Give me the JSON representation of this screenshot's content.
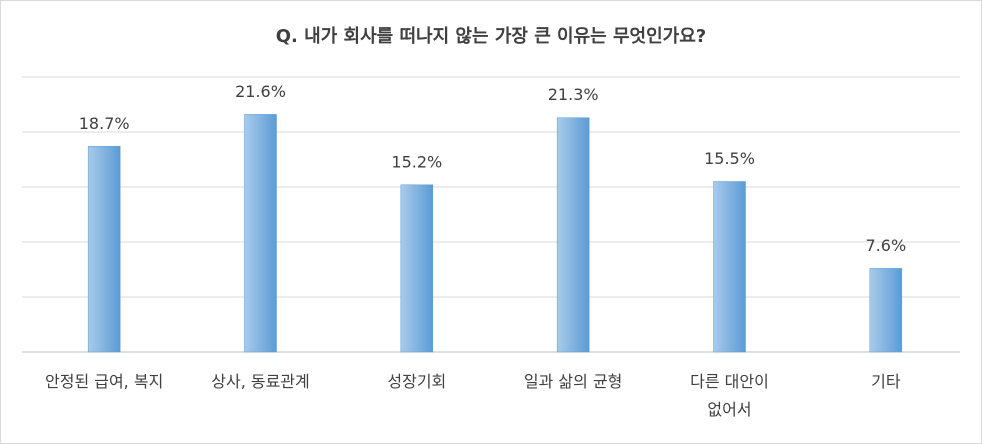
{
  "chart_data": {
    "type": "bar",
    "title": "Q. 내가 회사를 떠나지 않는 가장 큰 이유는  무엇인가요?",
    "categories": [
      "안정된 급여, 복지",
      "상사, 동료관계",
      "성장기회",
      "일과 삶의 균형",
      "다른 대안이\n없어서",
      "기타"
    ],
    "values": [
      18.7,
      21.6,
      15.2,
      21.3,
      15.5,
      7.6
    ],
    "value_labels": [
      "18.7%",
      "21.6%",
      "15.2%",
      "21.3%",
      "15.5%",
      "7.6%"
    ],
    "color": "#5b9bd5",
    "ylim": [
      0,
      25
    ],
    "yticks": [
      0,
      5,
      10,
      15,
      20,
      25
    ],
    "grid": true
  }
}
